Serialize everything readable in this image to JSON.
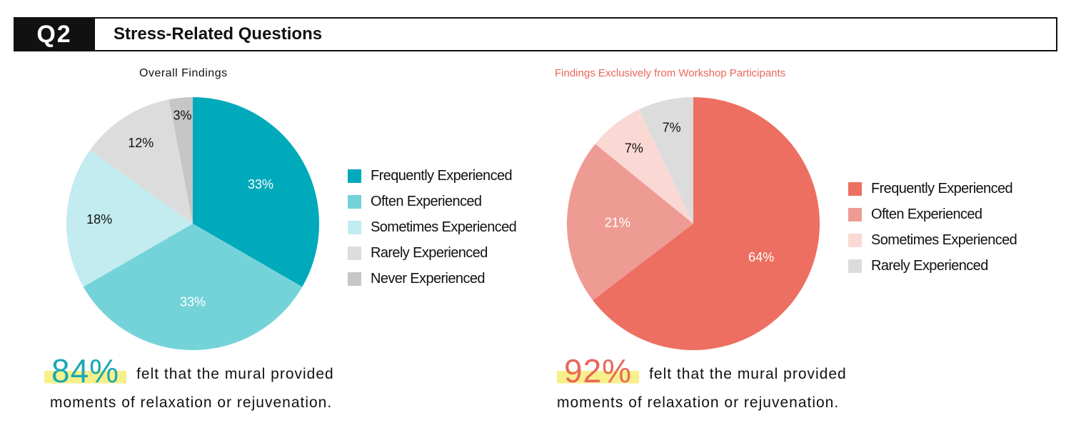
{
  "header": {
    "badge": "Q2",
    "title": "Stress-Related Questions"
  },
  "colors": {
    "teal_dark": "#00aabb",
    "teal_mid": "#74d3d9",
    "teal_light": "#c2ecef",
    "gray_light": "#dcdcdc",
    "gray_mid": "#c6c6c6",
    "coral_dark": "#ed6f61",
    "coral_mid": "#ee9b93",
    "coral_light": "#fad8d4",
    "highlight": "#f7f08a"
  },
  "chart_data": [
    {
      "type": "pie",
      "title": "Overall Findings",
      "slices": [
        {
          "label": "Frequently Experienced",
          "value": 33,
          "display": "33%",
          "color": "#00aabb",
          "label_color": "#ffffff"
        },
        {
          "label": "Often Experienced",
          "value": 33,
          "display": "33%",
          "color": "#74d3d9",
          "label_color": "#ffffff"
        },
        {
          "label": "Sometimes Experienced",
          "value": 18,
          "display": "18%",
          "color": "#c2ecef",
          "label_color": "#111111"
        },
        {
          "label": "Rarely Experienced",
          "value": 12,
          "display": "12%",
          "color": "#dcdcdc",
          "label_color": "#111111"
        },
        {
          "label": "Never Experienced",
          "value": 3,
          "display": "3%",
          "color": "#c6c6c6",
          "label_color": "#111111"
        }
      ],
      "legend_position": "right",
      "summary": {
        "percent": "84%",
        "text_line1": "felt that the mural provided",
        "text_line2": "moments of relaxation or rejuvenation."
      }
    },
    {
      "type": "pie",
      "title": "Findings Exclusively from Workshop Participants",
      "slices": [
        {
          "label": "Frequently Experienced",
          "value": 64,
          "display": "64%",
          "color": "#ed6f61",
          "label_color": "#ffffff"
        },
        {
          "label": "Often Experienced",
          "value": 21,
          "display": "21%",
          "color": "#ee9b93",
          "label_color": "#ffffff"
        },
        {
          "label": "Sometimes Experienced",
          "value": 7,
          "display": "7%",
          "color": "#fad8d4",
          "label_color": "#111111"
        },
        {
          "label": "Rarely Experienced",
          "value": 7,
          "display": "7%",
          "color": "#dcdcdc",
          "label_color": "#111111"
        }
      ],
      "legend_position": "right",
      "summary": {
        "percent": "92%",
        "text_line1": "felt that the mural provided",
        "text_line2": "moments of relaxation or rejuvenation."
      }
    }
  ]
}
